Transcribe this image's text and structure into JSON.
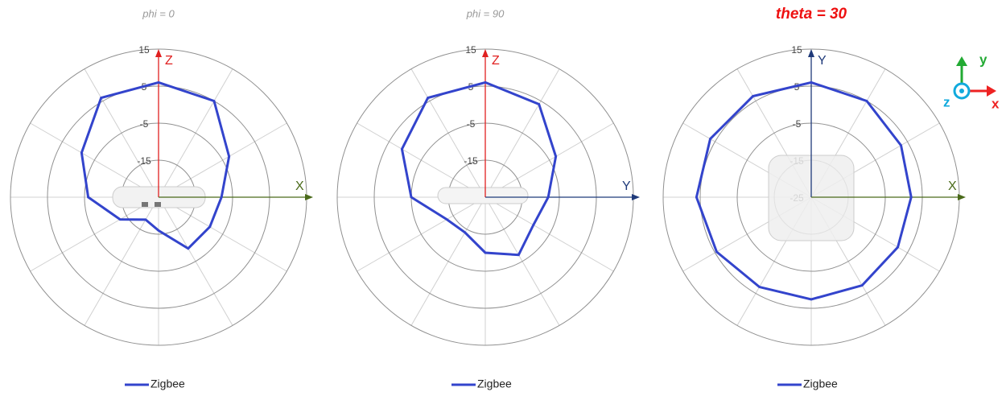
{
  "chart_data": [
    {
      "type": "polar",
      "title": "phi = 0",
      "title_color": "#999999",
      "title_bold": false,
      "up_axis": {
        "label": "Z",
        "color": "#e02020"
      },
      "right_axis": {
        "label": "X",
        "color": "#4a6a1a"
      },
      "theta": [
        0,
        30,
        60,
        90,
        120,
        150,
        180,
        210,
        240,
        270,
        300,
        330
      ],
      "rlim": [
        -25,
        15
      ],
      "rticks": [
        15,
        5,
        -5,
        -15,
        -25
      ],
      "series": [
        {
          "name": "Zigbee",
          "color": "#3344cc",
          "values": [
            6,
            5,
            -3,
            -8,
            -9,
            -9,
            -16,
            -18,
            -13,
            -6,
            -1,
            6
          ]
        }
      ]
    },
    {
      "type": "polar",
      "title": "phi = 90",
      "title_color": "#999999",
      "title_bold": false,
      "up_axis": {
        "label": "Z",
        "color": "#e02020"
      },
      "right_axis": {
        "label": "Y",
        "color": "#1f3a7a"
      },
      "theta": [
        0,
        30,
        60,
        90,
        120,
        150,
        180,
        210,
        240,
        270,
        300,
        330
      ],
      "rlim": [
        -25,
        15
      ],
      "rticks": [
        15,
        5,
        -5,
        -15,
        -25
      ],
      "series": [
        {
          "name": "Zigbee",
          "color": "#3344cc",
          "values": [
            6,
            4,
            -3,
            -8,
            -10,
            -7,
            -10,
            -14,
            -13,
            -5,
            1,
            6
          ]
        }
      ]
    },
    {
      "type": "polar",
      "title": "theta = 30",
      "title_color": "#ee1111",
      "title_bold": true,
      "up_axis": {
        "label": "Y",
        "color": "#1f3a7a"
      },
      "right_axis": {
        "label": "X",
        "color": "#4a6a1a"
      },
      "theta": [
        0,
        30,
        60,
        90,
        120,
        150,
        180,
        210,
        240,
        270,
        300,
        330
      ],
      "rlim": [
        -25,
        15
      ],
      "rticks": [
        15,
        5,
        -5,
        -15,
        -25
      ],
      "series": [
        {
          "name": "Zigbee",
          "color": "#3344cc",
          "values": [
            6,
            5,
            3,
            2,
            2,
            2.5,
            2.6,
            3,
            4.5,
            6,
            6.5,
            6.5
          ]
        }
      ]
    }
  ],
  "orientation_icon": {
    "x": "x",
    "y": "y",
    "z": "z"
  }
}
